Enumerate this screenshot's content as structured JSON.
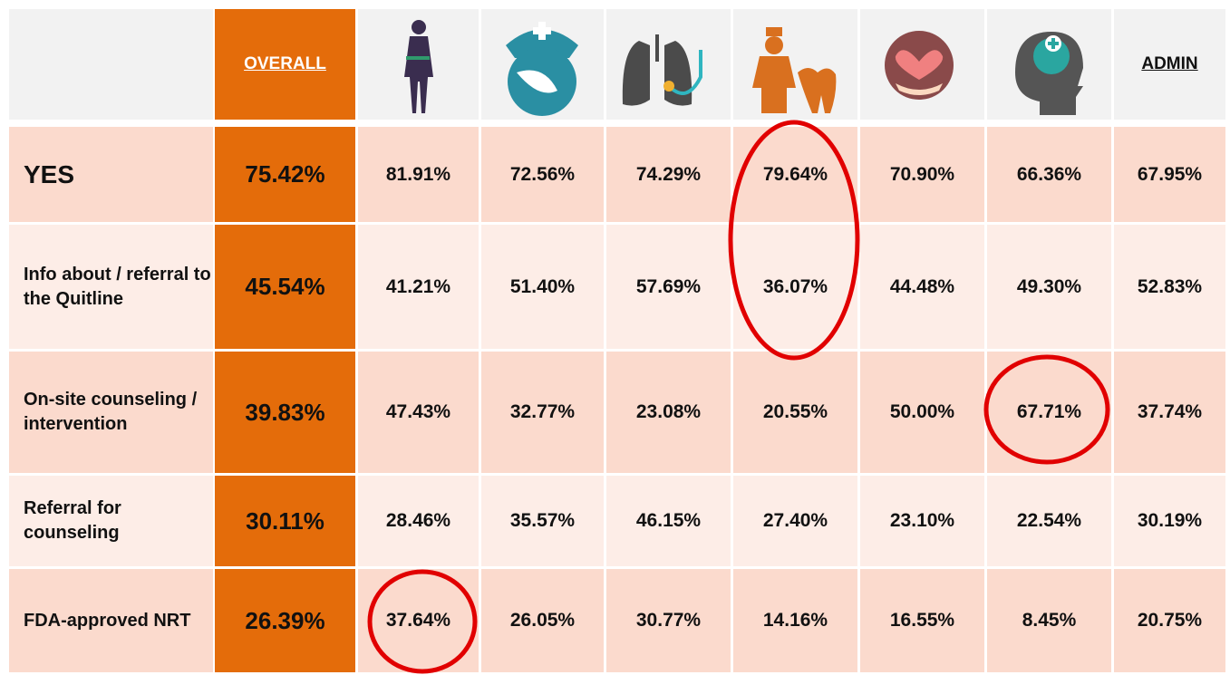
{
  "table": {
    "columns": {
      "overall": "OVERALL",
      "admin": "ADMIN"
    },
    "rows": [
      {
        "label": "YES",
        "values": [
          "75.42%",
          "81.91%",
          "72.56%",
          "74.29%",
          "79.64%",
          "70.90%",
          "66.36%",
          "67.95%"
        ]
      },
      {
        "label": "Info about / referral to the Quitline",
        "values": [
          "45.54%",
          "41.21%",
          "51.40%",
          "57.69%",
          "36.07%",
          "44.48%",
          "49.30%",
          "52.83%"
        ]
      },
      {
        "label": "On-site counseling / intervention",
        "values": [
          "39.83%",
          "47.43%",
          "32.77%",
          "23.08%",
          "20.55%",
          "50.00%",
          "67.71%",
          "37.74%"
        ]
      },
      {
        "label": "Referral for counseling",
        "values": [
          "30.11%",
          "28.46%",
          "35.57%",
          "46.15%",
          "27.40%",
          "23.10%",
          "22.54%",
          "30.19%"
        ]
      },
      {
        "label": "FDA-approved NRT",
        "values": [
          "26.39%",
          "37.64%",
          "26.05%",
          "30.77%",
          "14.16%",
          "16.55%",
          "8.45%",
          "20.75%"
        ]
      }
    ]
  }
}
